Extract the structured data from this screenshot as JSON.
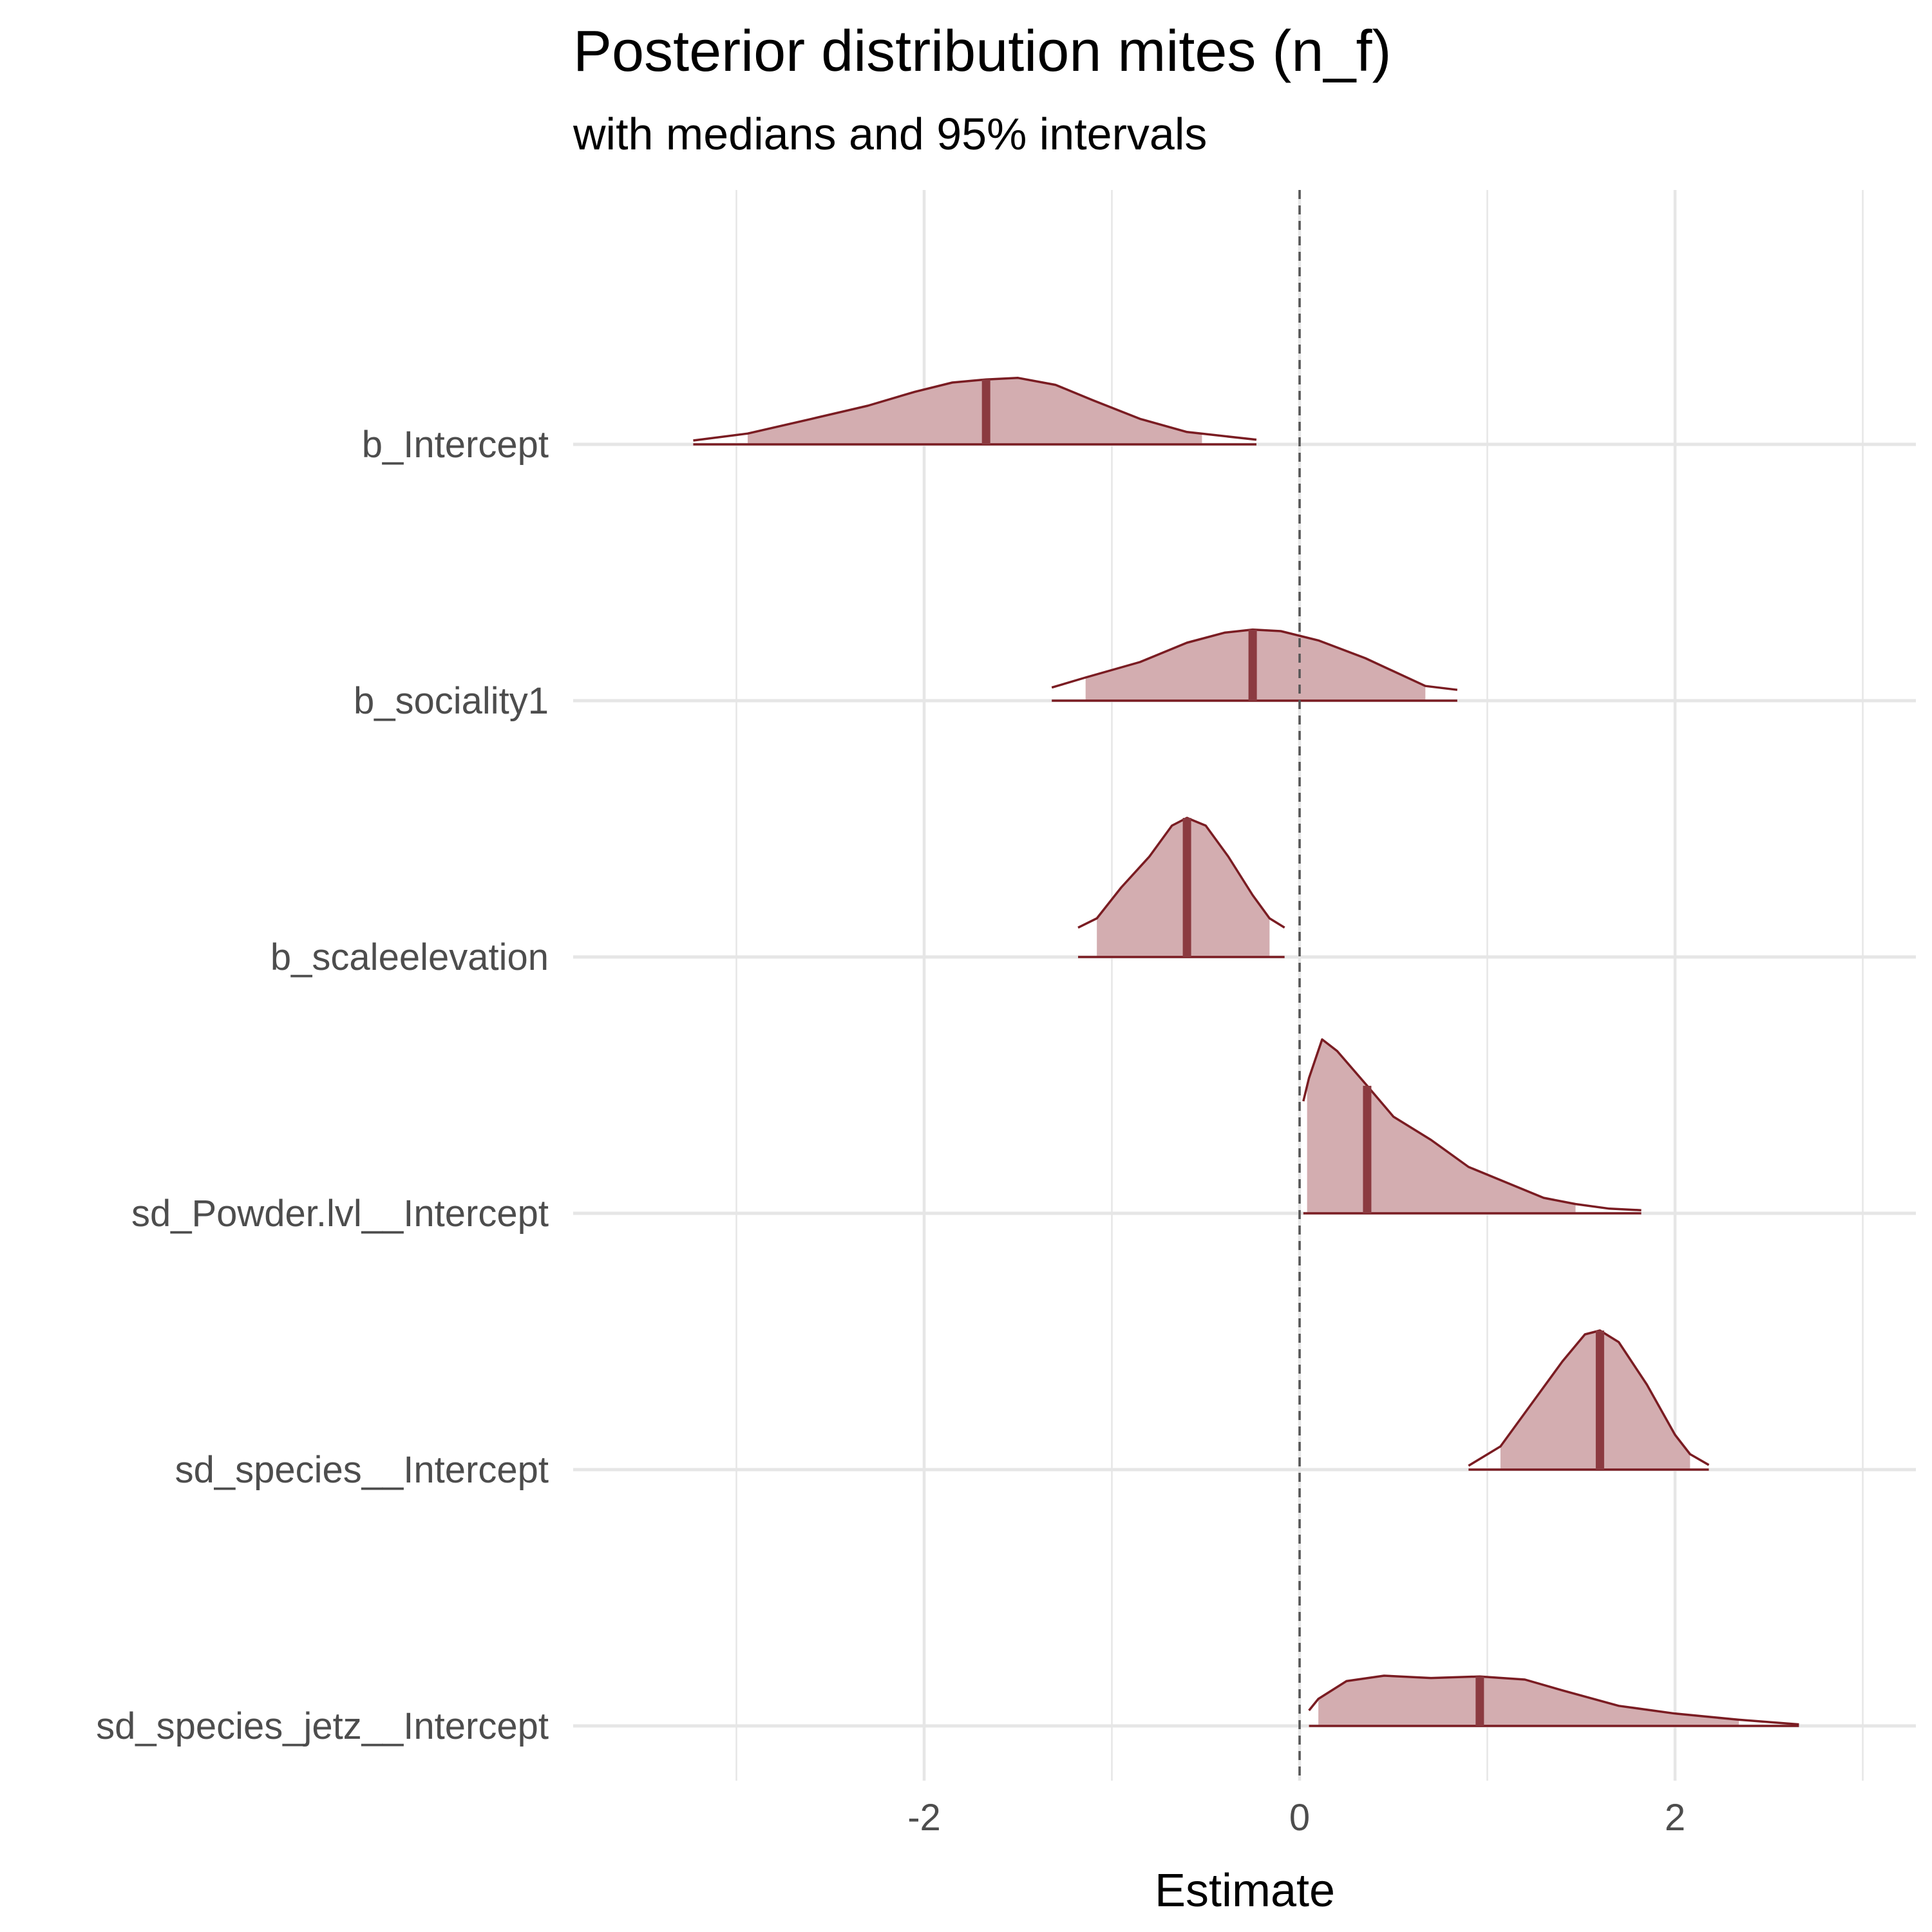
{
  "chart_data": {
    "type": "area",
    "title": "Posterior distribution mites (n_f)",
    "subtitle": "with medians and 95% intervals",
    "xlabel": "Estimate",
    "ylabel": "",
    "xlim": [
      -3.6,
      3.3
    ],
    "x_ticks": [
      -2,
      0,
      2
    ],
    "x_tick_labels": [
      "-2",
      "0",
      "2"
    ],
    "reference_line": {
      "x": 0,
      "style": "dashed",
      "color": "#555555"
    },
    "grid": true,
    "legend": "none",
    "colors": {
      "fill": "#d3adb0",
      "outline": "#7a1c22",
      "median": "#8b3a40",
      "grid": "#e6e6e6"
    },
    "series": [
      {
        "name": "b_Intercept",
        "median": -1.67,
        "interval_95": [
          -2.94,
          -0.52
        ],
        "range": [
          -3.23,
          -0.23
        ],
        "density": [
          [
            -3.23,
            0.05
          ],
          [
            -2.94,
            0.14
          ],
          [
            -2.6,
            0.33
          ],
          [
            -2.3,
            0.5
          ],
          [
            -2.05,
            0.68
          ],
          [
            -1.85,
            0.8
          ],
          [
            -1.67,
            0.84
          ],
          [
            -1.5,
            0.86
          ],
          [
            -1.3,
            0.77
          ],
          [
            -1.1,
            0.57
          ],
          [
            -0.85,
            0.33
          ],
          [
            -0.6,
            0.16
          ],
          [
            -0.23,
            0.06
          ]
        ]
      },
      {
        "name": "b_sociality1",
        "median": -0.25,
        "interval_95": [
          -1.14,
          0.67
        ],
        "range": [
          -1.32,
          0.84
        ],
        "density": [
          [
            -1.32,
            0.17
          ],
          [
            -1.14,
            0.3
          ],
          [
            -0.85,
            0.5
          ],
          [
            -0.6,
            0.75
          ],
          [
            -0.4,
            0.88
          ],
          [
            -0.25,
            0.92
          ],
          [
            -0.1,
            0.9
          ],
          [
            0.1,
            0.78
          ],
          [
            0.35,
            0.55
          ],
          [
            0.67,
            0.19
          ],
          [
            0.84,
            0.14
          ]
        ]
      },
      {
        "name": "b_scaleelevation",
        "median": -0.6,
        "interval_95": [
          -1.08,
          -0.16
        ],
        "range": [
          -1.18,
          -0.08
        ],
        "density": [
          [
            -1.18,
            0.38
          ],
          [
            -1.08,
            0.5
          ],
          [
            -0.95,
            0.9
          ],
          [
            -0.8,
            1.3
          ],
          [
            -0.68,
            1.7
          ],
          [
            -0.6,
            1.8
          ],
          [
            -0.5,
            1.7
          ],
          [
            -0.38,
            1.3
          ],
          [
            -0.25,
            0.8
          ],
          [
            -0.16,
            0.5
          ],
          [
            -0.08,
            0.38
          ]
        ]
      },
      {
        "name": "sd_Powder.lvl__Intercept",
        "median": 0.36,
        "interval_95": [
          0.04,
          1.47
        ],
        "range": [
          0.02,
          1.82
        ],
        "density": [
          [
            0.02,
            1.45
          ],
          [
            0.05,
            1.75
          ],
          [
            0.12,
            2.25
          ],
          [
            0.2,
            2.1
          ],
          [
            0.36,
            1.65
          ],
          [
            0.5,
            1.25
          ],
          [
            0.7,
            0.95
          ],
          [
            0.9,
            0.6
          ],
          [
            1.1,
            0.4
          ],
          [
            1.3,
            0.2
          ],
          [
            1.47,
            0.12
          ],
          [
            1.65,
            0.06
          ],
          [
            1.82,
            0.04
          ]
        ]
      },
      {
        "name": "sd_species__Intercept",
        "median": 1.6,
        "interval_95": [
          1.07,
          2.08
        ],
        "range": [
          0.9,
          2.18
        ],
        "density": [
          [
            0.9,
            0.05
          ],
          [
            1.07,
            0.3
          ],
          [
            1.25,
            0.9
          ],
          [
            1.4,
            1.4
          ],
          [
            1.52,
            1.75
          ],
          [
            1.6,
            1.8
          ],
          [
            1.7,
            1.65
          ],
          [
            1.85,
            1.1
          ],
          [
            2.0,
            0.45
          ],
          [
            2.08,
            0.2
          ],
          [
            2.18,
            0.06
          ]
        ]
      },
      {
        "name": "sd_species_jetz__Intercept",
        "median": 0.96,
        "interval_95": [
          0.1,
          2.34
        ],
        "range": [
          0.05,
          2.66
        ],
        "density": [
          [
            0.05,
            0.2
          ],
          [
            0.1,
            0.35
          ],
          [
            0.25,
            0.58
          ],
          [
            0.45,
            0.65
          ],
          [
            0.7,
            0.62
          ],
          [
            0.96,
            0.64
          ],
          [
            1.2,
            0.6
          ],
          [
            1.4,
            0.46
          ],
          [
            1.7,
            0.26
          ],
          [
            2.0,
            0.16
          ],
          [
            2.34,
            0.08
          ],
          [
            2.66,
            0.02
          ]
        ]
      }
    ]
  }
}
